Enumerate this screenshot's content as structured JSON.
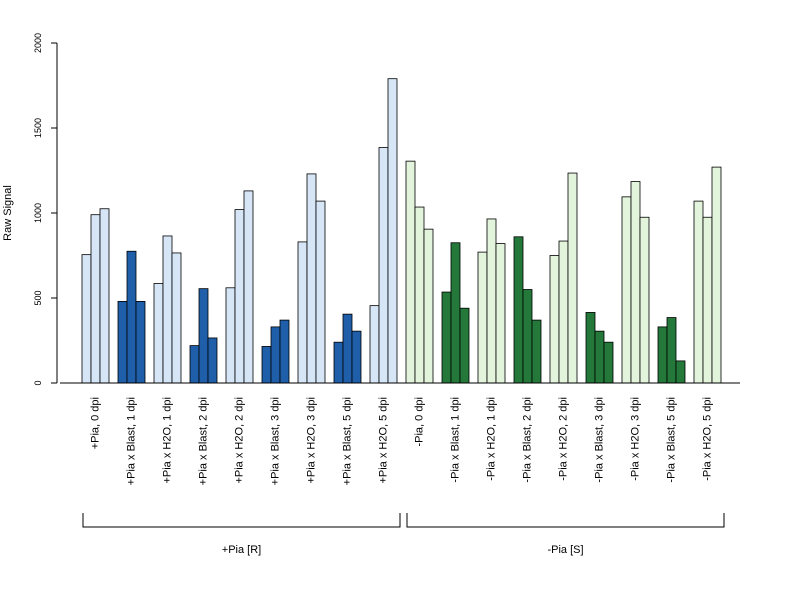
{
  "chart_data": {
    "type": "bar",
    "ylabel": "Raw Signal",
    "ylim": [
      0,
      2000
    ],
    "yticks": [
      0,
      500,
      1000,
      1500,
      2000
    ],
    "grid": false,
    "categories": [
      "+Pia, 0 dpi",
      "+Pia x Blast, 1 dpi",
      "+Pia x H2O, 1 dpi",
      "+Pia x Blast, 2 dpi",
      "+Pia x H2O, 2 dpi",
      "+Pia x Blast, 3 dpi",
      "+Pia x H2O, 3 dpi",
      "+Pia x Blast, 5 dpi",
      "+Pia x H2O, 5 dpi",
      "-Pia, 0 dpi",
      "-Pia x Blast, 1 dpi",
      "-Pia x H2O, 1 dpi",
      "-Pia x Blast, 2 dpi",
      "-Pia x H2O, 2 dpi",
      "-Pia x Blast, 3 dpi",
      "-Pia x H2O, 3 dpi",
      "-Pia x Blast, 5 dpi",
      "-Pia x H2O, 5 dpi"
    ],
    "replicates": [
      [
        755,
        990,
        1025
      ],
      [
        480,
        775,
        480
      ],
      [
        585,
        865,
        765
      ],
      [
        220,
        555,
        265
      ],
      [
        560,
        1020,
        1130
      ],
      [
        215,
        330,
        370
      ],
      [
        830,
        1230,
        1070
      ],
      [
        240,
        405,
        305
      ],
      [
        455,
        1385,
        1790
      ],
      [
        1305,
        1035,
        905
      ],
      [
        535,
        825,
        440
      ],
      [
        770,
        965,
        820
      ],
      [
        860,
        550,
        370
      ],
      [
        750,
        835,
        1235
      ],
      [
        415,
        305,
        240
      ],
      [
        1095,
        1185,
        975
      ],
      [
        330,
        385,
        130
      ],
      [
        1070,
        975,
        1270
      ]
    ],
    "bar_colors": [
      "#d6e6f7",
      "#1f5ea8",
      "#d6e6f7",
      "#1f5ea8",
      "#d6e6f7",
      "#1f5ea8",
      "#d6e6f7",
      "#1f5ea8",
      "#d6e6f7",
      "#e3f4dc",
      "#23783a",
      "#e3f4dc",
      "#23783a",
      "#e3f4dc",
      "#23783a",
      "#e3f4dc",
      "#23783a",
      "#e3f4dc"
    ],
    "groups": [
      {
        "label": "+Pia [R]",
        "from": 0,
        "to": 8
      },
      {
        "label": "-Pia [S]",
        "from": 9,
        "to": 17
      }
    ]
  }
}
